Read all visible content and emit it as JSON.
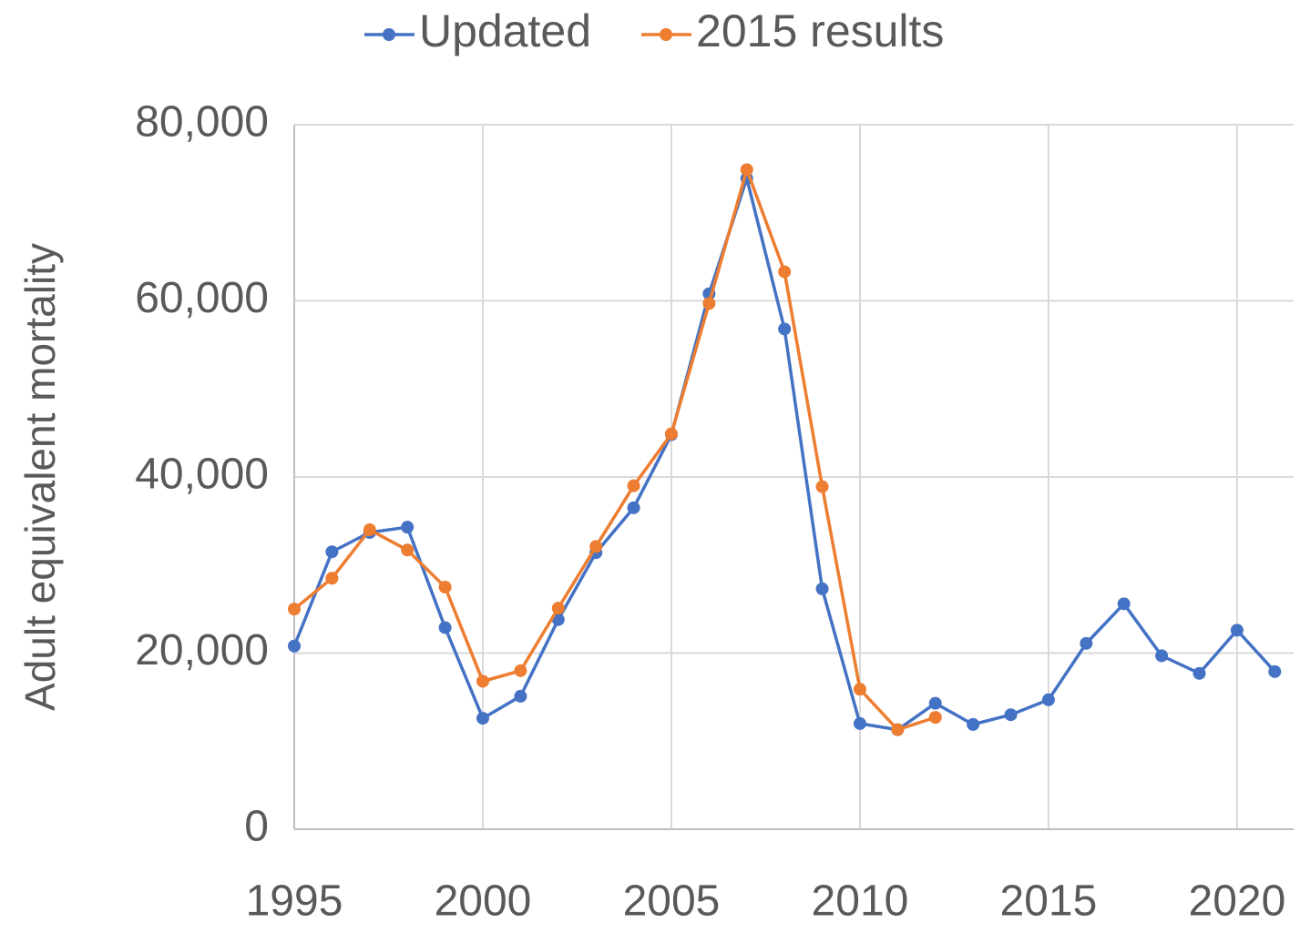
{
  "chart_data": {
    "type": "line",
    "ylabel": "Adult equivalent mortality",
    "x": [
      1995,
      1996,
      1997,
      1998,
      1999,
      2000,
      2001,
      2002,
      2003,
      2004,
      2005,
      2006,
      2007,
      2008,
      2009,
      2010,
      2011,
      2012,
      2013,
      2014,
      2015,
      2016,
      2017,
      2018,
      2019,
      2020,
      2021
    ],
    "series": [
      {
        "name": "Updated",
        "color": "#4472c4",
        "values": [
          20800,
          31500,
          33700,
          34300,
          22900,
          12600,
          15100,
          23800,
          31400,
          36500,
          44800,
          60800,
          73900,
          56800,
          27300,
          12000,
          11300,
          14300,
          11900,
          13000,
          14700,
          21100,
          25600,
          19700,
          17700,
          22600,
          17900
        ]
      },
      {
        "name": "2015 results",
        "color": "#ed7d31",
        "values": [
          25000,
          28500,
          34000,
          31700,
          27500,
          16800,
          18000,
          25100,
          32100,
          39000,
          44900,
          59700,
          74900,
          63300,
          38900,
          15900,
          11300,
          12700,
          null,
          null,
          null,
          null,
          null,
          null,
          null,
          null,
          null
        ]
      }
    ],
    "xlim": [
      1995,
      2021.5
    ],
    "xticks": [
      1995,
      2000,
      2005,
      2010,
      2015,
      2020
    ],
    "ylim": [
      0,
      80000
    ],
    "yticks": [
      0,
      {
        "value": 20000,
        "label": "20,000"
      },
      {
        "value": 40000,
        "label": "40,000"
      },
      {
        "value": 60000,
        "label": "60,000"
      },
      {
        "value": 80000,
        "label": "80,000"
      }
    ],
    "grid": true,
    "legend": "top"
  }
}
